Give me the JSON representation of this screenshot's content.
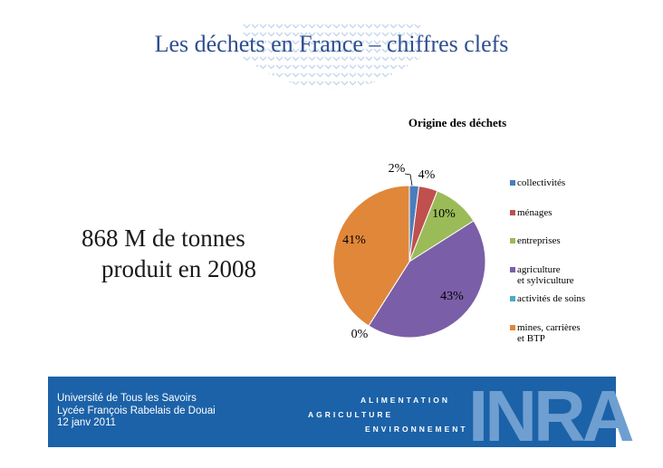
{
  "slide": {
    "title": "Les déchets en France – chiffres clefs",
    "main_text": [
      "868 M de tonnes",
      "produit en 2008"
    ]
  },
  "chart_data": {
    "type": "pie",
    "title": "Origine des déchets",
    "categories": [
      "collectivités",
      "ménages",
      "entreprises",
      "agriculture\net sylviculture",
      "activités de soins",
      "mines, carrières\net BTP"
    ],
    "values": [
      2,
      4,
      10,
      43,
      0,
      41
    ],
    "data_labels": [
      "2%",
      "4%",
      "10%",
      "43%",
      "0%",
      "41%"
    ],
    "colors": [
      "#4a7dbc",
      "#c0504d",
      "#9bbb59",
      "#7b5ea8",
      "#4bacc6",
      "#e0873a"
    ],
    "legend_position": "right"
  },
  "footer": {
    "lines": [
      "Université de Tous les Savoirs",
      "Lycée François Rabelais de Douai",
      "12 janv 2011"
    ],
    "tagline": [
      "ALIMENTATION",
      "AGRICULTURE",
      "ENVIRONNEMENT"
    ],
    "logo": "INRA"
  }
}
